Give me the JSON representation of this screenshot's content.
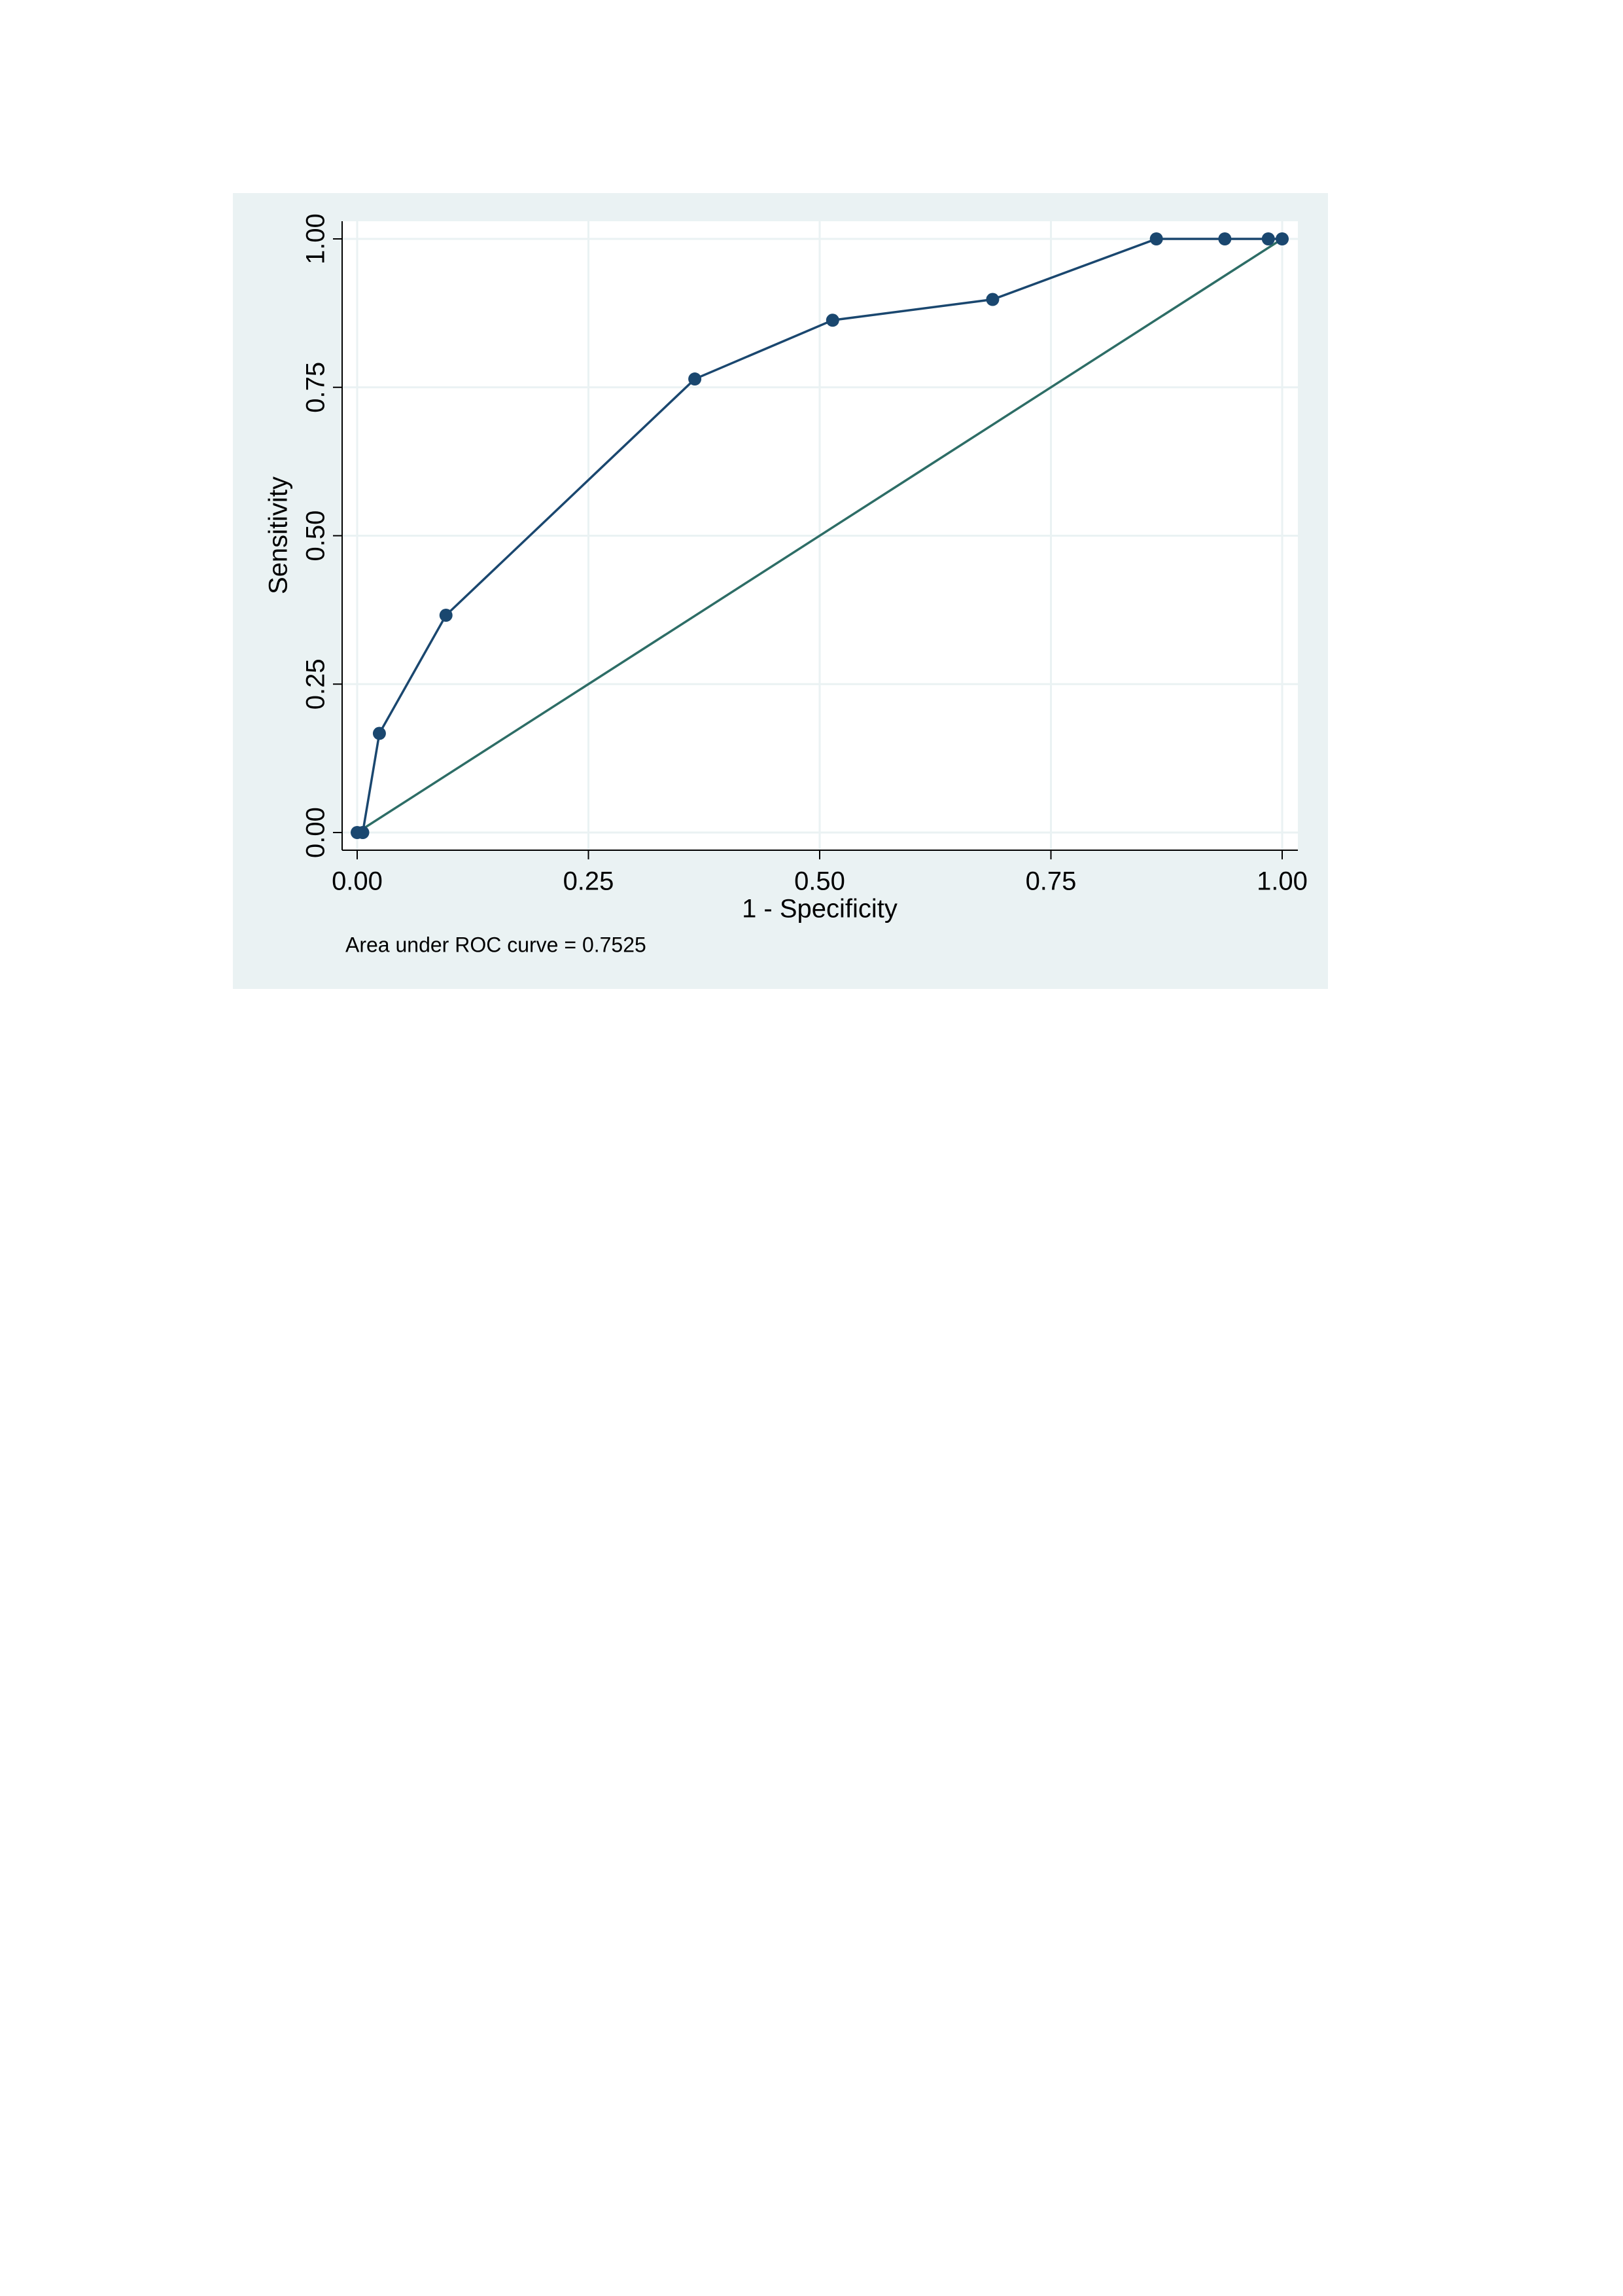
{
  "chart_data": {
    "type": "line",
    "xlabel": "1 - Specificity",
    "ylabel": "Sensitivity",
    "note": "Area under ROC curve = 0.7525",
    "series": [
      {
        "color": "#1a476f",
        "markers": true,
        "x": [
          0,
          0.006,
          0.024,
          0.096,
          0.365,
          0.514,
          0.687,
          0.864,
          0.938,
          0.985,
          1
        ],
        "values": [
          0,
          0,
          0.167,
          0.366,
          0.764,
          0.863,
          0.898,
          1,
          1,
          1,
          1
        ]
      },
      {
        "color": "#2d6d66",
        "markers": false,
        "x": [
          0,
          1
        ],
        "values": [
          0,
          1
        ]
      }
    ],
    "xlim": [
      0,
      1
    ],
    "ylim": [
      0,
      1
    ],
    "xticks": [
      {
        "value": 0,
        "label": "0.00"
      },
      {
        "value": 0.25,
        "label": "0.25"
      },
      {
        "value": 0.5,
        "label": "0.50"
      },
      {
        "value": 0.75,
        "label": "0.75"
      },
      {
        "value": 1,
        "label": "1.00"
      }
    ],
    "yticks": [
      {
        "value": 0,
        "label": "0.00"
      },
      {
        "value": 0.25,
        "label": "0.25"
      },
      {
        "value": 0.5,
        "label": "0.50"
      },
      {
        "value": 0.75,
        "label": "0.75"
      },
      {
        "value": 1,
        "label": "1.00"
      }
    ],
    "grid": true
  }
}
